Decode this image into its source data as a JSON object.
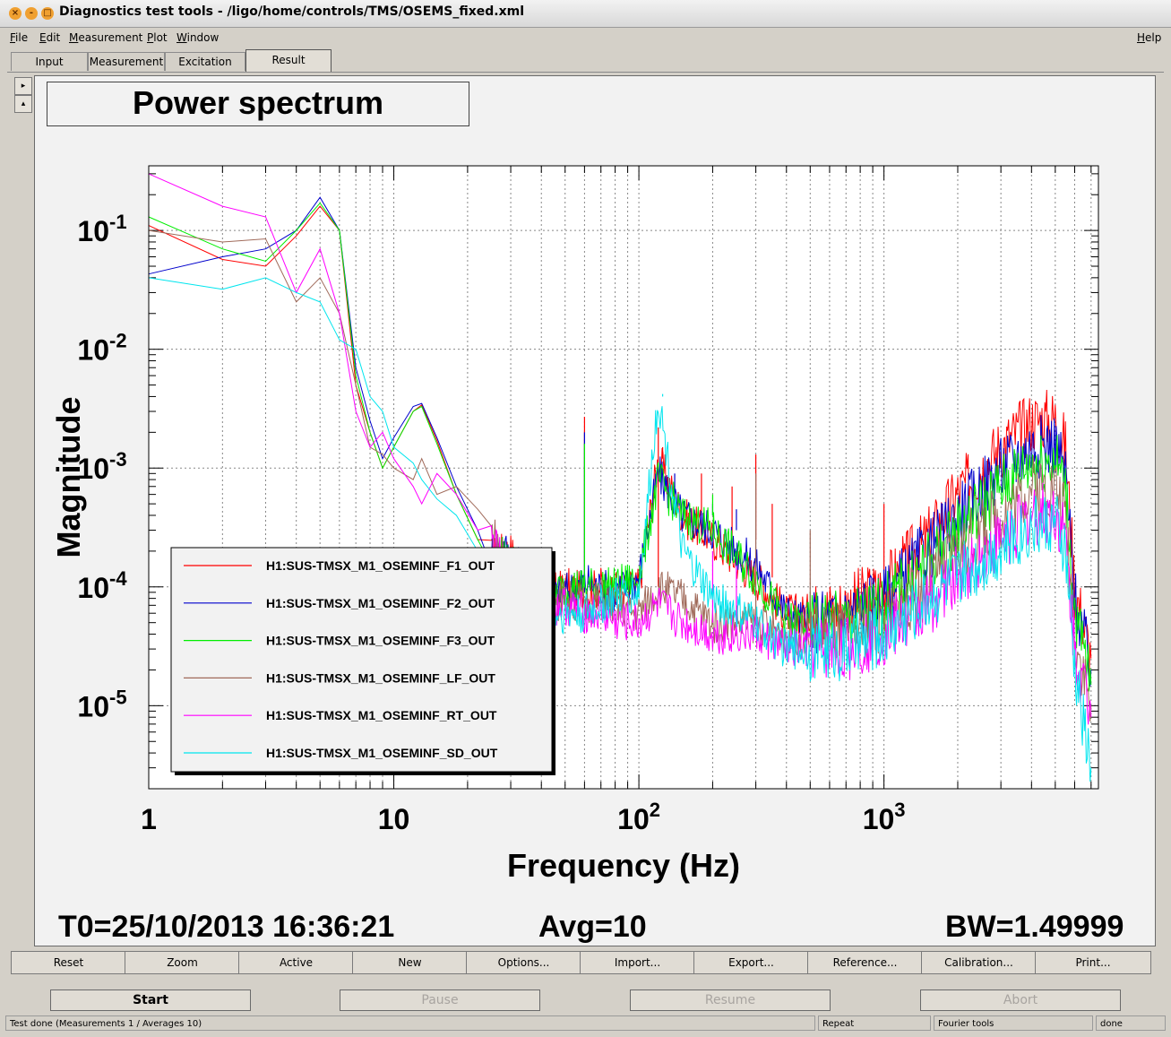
{
  "window": {
    "title": "Diagnostics test tools - /ligo/home/controls/TMS/OSEMS_fixed.xml"
  },
  "menu": {
    "left": [
      "File",
      "Edit",
      "Measurement",
      "Plot",
      "Window"
    ],
    "help": "Help"
  },
  "tabs": [
    {
      "label": "Input",
      "active": false
    },
    {
      "label": "Measurement",
      "active": false
    },
    {
      "label": "Excitation",
      "active": false
    },
    {
      "label": "Result",
      "active": true
    }
  ],
  "plot": {
    "title": "Power spectrum",
    "t0": "T0=25/10/2013 16:36:21",
    "avg": "Avg=10",
    "bw": "BW=1.49999"
  },
  "chart_data": {
    "type": "line",
    "title": "Power spectrum",
    "xlabel": "Frequency (Hz)",
    "ylabel": "Magnitude",
    "x_scale": "log",
    "y_scale": "log",
    "xlim": [
      1,
      7500
    ],
    "ylim": [
      2e-06,
      0.35
    ],
    "grid": true,
    "legend_position": "bottom-left",
    "x_tick_labels": [
      {
        "base": "1",
        "exp": ""
      },
      {
        "base": "10",
        "exp": ""
      },
      {
        "base": "10",
        "exp": "2"
      },
      {
        "base": "10",
        "exp": "3"
      }
    ],
    "x_tick_values": [
      1,
      10,
      100,
      1000
    ],
    "y_tick_labels": [
      {
        "base": "10",
        "exp": "-1"
      },
      {
        "base": "10",
        "exp": "-2"
      },
      {
        "base": "10",
        "exp": "-3"
      },
      {
        "base": "10",
        "exp": "-4"
      },
      {
        "base": "10",
        "exp": "-5"
      }
    ],
    "y_tick_values": [
      0.1,
      0.01,
      0.001,
      0.0001,
      1e-05
    ],
    "series": [
      {
        "name": "H1:SUS-TMSX_M1_OSEMINF_F1_OUT",
        "color": "#ff0000",
        "x": [
          1,
          2,
          3,
          4,
          5,
          6,
          7,
          8,
          9,
          10,
          12,
          13,
          15,
          18,
          22,
          25,
          28,
          30,
          35,
          40,
          50,
          60,
          70,
          80,
          100,
          120,
          150,
          200,
          300,
          400,
          500,
          700,
          1000,
          1500,
          2000,
          3000,
          4000,
          5000,
          5500,
          6000,
          7000
        ],
        "y": [
          0.11,
          0.057,
          0.05,
          0.09,
          0.16,
          0.1,
          0.005,
          0.002,
          0.001,
          0.0015,
          0.003,
          0.0034,
          0.0017,
          0.0006,
          0.00025,
          0.00018,
          0.0002,
          0.0002,
          0.00013,
          8e-05,
          0.0001,
          9e-05,
          0.0001,
          9e-05,
          0.0001,
          0.0012,
          0.0004,
          0.00025,
          0.00012,
          6e-05,
          6e-05,
          7e-05,
          0.0001,
          0.00025,
          0.0006,
          0.0015,
          0.0025,
          0.0026,
          0.0015,
          0.0001,
          2.5e-05
        ],
        "peaks_x": [
          60,
          120,
          125,
          180,
          240,
          300,
          350,
          1000,
          1250
        ],
        "peaks_y": [
          0.0027,
          0.0022,
          0.0015,
          0.0009,
          0.0007,
          0.0013,
          0.0005,
          0.0005,
          0.0003
        ]
      },
      {
        "name": "H1:SUS-TMSX_M1_OSEMINF_F2_OUT",
        "color": "#0000cc",
        "x": [
          1,
          2,
          3,
          4,
          5,
          6,
          7,
          8,
          9,
          10,
          12,
          13,
          15,
          18,
          22,
          25,
          28,
          30,
          35,
          40,
          50,
          60,
          70,
          80,
          100,
          120,
          150,
          200,
          300,
          400,
          500,
          700,
          1000,
          1500,
          2000,
          3000,
          4000,
          5000,
          5500,
          6000,
          7000
        ],
        "y": [
          0.043,
          0.06,
          0.07,
          0.1,
          0.19,
          0.1,
          0.007,
          0.0025,
          0.0012,
          0.0018,
          0.0033,
          0.0035,
          0.0018,
          0.0007,
          0.0003,
          0.0002,
          0.00022,
          0.00018,
          0.00012,
          8e-05,
          9e-05,
          0.00011,
          0.0001,
          9e-05,
          0.00012,
          0.0009,
          0.0004,
          0.0003,
          0.00015,
          6e-05,
          5e-05,
          6e-05,
          8e-05,
          0.0002,
          0.0004,
          0.001,
          0.0015,
          0.0016,
          0.0009,
          8e-05,
          2e-05
        ],
        "peaks_x": [
          60,
          140,
          200,
          250
        ],
        "peaks_y": [
          0.002,
          0.0006,
          0.0005,
          0.00045
        ]
      },
      {
        "name": "H1:SUS-TMSX_M1_OSEMINF_F3_OUT",
        "color": "#00ee00",
        "x": [
          1,
          2,
          3,
          4,
          5,
          6,
          7,
          8,
          9,
          10,
          12,
          13,
          15,
          18,
          22,
          25,
          28,
          30,
          35,
          40,
          50,
          60,
          70,
          80,
          100,
          120,
          150,
          200,
          300,
          400,
          500,
          700,
          1000,
          1500,
          2000,
          3000,
          4000,
          5000,
          5500,
          6000,
          7000
        ],
        "y": [
          0.13,
          0.07,
          0.055,
          0.1,
          0.17,
          0.1,
          0.006,
          0.002,
          0.001,
          0.0015,
          0.003,
          0.0033,
          0.0016,
          0.0006,
          0.00025,
          0.00017,
          0.00018,
          0.00017,
          0.00012,
          8e-05,
          0.0001,
          0.0001,
          0.0001,
          0.0001,
          0.00012,
          0.0008,
          0.0004,
          0.0003,
          0.00012,
          5e-05,
          5e-05,
          5e-05,
          7e-05,
          0.00015,
          0.0003,
          0.0007,
          0.0011,
          0.0012,
          0.0007,
          6e-05,
          1.5e-05
        ],
        "peaks_x": [
          60,
          130,
          200
        ],
        "peaks_y": [
          0.0016,
          0.0008,
          0.0006
        ]
      },
      {
        "name": "H1:SUS-TMSX_M1_OSEMINF_LF_OUT",
        "color": "#a06a5a",
        "x": [
          1,
          2,
          3,
          4,
          5,
          6,
          7,
          8,
          9,
          10,
          12,
          13,
          15,
          18,
          22,
          25,
          28,
          30,
          35,
          40,
          50,
          60,
          70,
          80,
          100,
          120,
          150,
          200,
          300,
          400,
          500,
          700,
          1000,
          1500,
          2000,
          3000,
          4000,
          5000,
          5500,
          6000,
          7000
        ],
        "y": [
          0.1,
          0.08,
          0.085,
          0.025,
          0.04,
          0.02,
          0.005,
          0.0015,
          0.0013,
          0.001,
          0.0008,
          0.0012,
          0.0006,
          0.0007,
          0.00045,
          0.0003,
          0.0002,
          0.00015,
          0.0001,
          7e-05,
          8e-05,
          7e-05,
          8e-05,
          7e-05,
          6e-05,
          0.0001,
          8e-05,
          5e-05,
          5e-05,
          4e-05,
          4e-05,
          4e-05,
          5e-05,
          0.0001,
          0.0002,
          0.0004,
          0.0007,
          0.0007,
          0.0004,
          4e-05,
          1e-05
        ],
        "peaks_x": [
          300,
          500
        ],
        "peaks_y": [
          0.0009,
          0.0003
        ]
      },
      {
        "name": "H1:SUS-TMSX_M1_OSEMINF_RT_OUT",
        "color": "#ff00ff",
        "x": [
          1,
          2,
          3,
          4,
          5,
          6,
          7,
          8,
          9,
          10,
          12,
          13,
          15,
          18,
          22,
          25,
          28,
          30,
          35,
          40,
          50,
          60,
          70,
          80,
          100,
          120,
          150,
          200,
          300,
          400,
          500,
          700,
          1000,
          1500,
          2000,
          3000,
          4000,
          5000,
          5500,
          6000,
          7000
        ],
        "y": [
          0.3,
          0.16,
          0.13,
          0.03,
          0.07,
          0.02,
          0.003,
          0.0015,
          0.002,
          0.0012,
          0.0007,
          0.0005,
          0.0009,
          0.0006,
          0.0003,
          0.00025,
          0.00015,
          0.00012,
          0.0001,
          7e-05,
          7e-05,
          6e-05,
          6e-05,
          5e-05,
          5e-05,
          7e-05,
          5e-05,
          4e-05,
          4e-05,
          3e-05,
          3e-05,
          3e-05,
          4e-05,
          7e-05,
          0.00012,
          0.00025,
          0.0004,
          0.00042,
          0.00025,
          3e-05,
          8e-06
        ],
        "peaks_x": [
          200,
          250
        ],
        "peaks_y": [
          0.0002,
          0.00015
        ]
      },
      {
        "name": "H1:SUS-TMSX_M1_OSEMINF_SD_OUT",
        "color": "#00e5ee",
        "x": [
          1,
          2,
          3,
          4,
          5,
          6,
          7,
          8,
          9,
          10,
          12,
          13,
          15,
          18,
          22,
          25,
          28,
          30,
          35,
          40,
          50,
          60,
          70,
          80,
          100,
          120,
          150,
          200,
          300,
          400,
          500,
          700,
          1000,
          1500,
          2000,
          3000,
          4000,
          5000,
          5500,
          6000,
          7000
        ],
        "y": [
          0.04,
          0.032,
          0.04,
          0.03,
          0.025,
          0.012,
          0.01,
          0.004,
          0.003,
          0.0015,
          0.0011,
          0.0008,
          0.00055,
          0.0004,
          0.0002,
          0.00012,
          0.0001,
          9e-05,
          8e-05,
          6e-05,
          6e-05,
          6e-05,
          7e-05,
          8e-05,
          9e-05,
          0.004,
          0.0002,
          8e-05,
          5e-05,
          3e-05,
          3e-05,
          3e-05,
          4e-05,
          8e-05,
          0.00012,
          0.00022,
          0.00033,
          0.00035,
          0.0002,
          2e-05,
          3e-06
        ],
        "peaks_x": [
          125
        ],
        "peaks_y": [
          0.0042
        ]
      }
    ]
  },
  "buttons": [
    "Reset",
    "Zoom",
    "Active",
    "New",
    "Options...",
    "Import...",
    "Export...",
    "Reference...",
    "Calibration...",
    "Print..."
  ],
  "controls": [
    {
      "label": "Start",
      "enabled": true
    },
    {
      "label": "Pause",
      "enabled": false
    },
    {
      "label": "Resume",
      "enabled": false
    },
    {
      "label": "Abort",
      "enabled": false
    }
  ],
  "status": {
    "message": "Test done (Measurements 1 / Averages 10)",
    "mode": "Repeat",
    "tool": "Fourier tools",
    "state": "done"
  }
}
